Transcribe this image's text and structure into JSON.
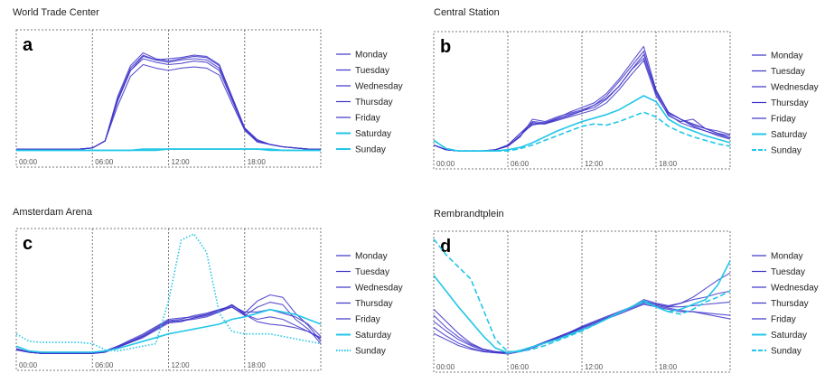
{
  "colors": {
    "weekday": "#3d33c8",
    "weekend": "#22c6e8",
    "frame": "#777777",
    "text": "#222222"
  },
  "chart_data": [
    {
      "type": "line",
      "title": "World Trade Center",
      "panel_letter": "a",
      "x_tick_labels": [
        "00:00",
        "06:00",
        "12:00",
        "18:00"
      ],
      "x_range_hours": [
        0,
        24
      ],
      "x": [
        0,
        1,
        2,
        3,
        4,
        5,
        6,
        7,
        8,
        9,
        10,
        11,
        12,
        13,
        14,
        15,
        16,
        17,
        18,
        19,
        20,
        21,
        22,
        23,
        24
      ],
      "series": [
        {
          "name": "Monday",
          "style": "solid",
          "values": [
            3,
            3,
            3,
            3,
            3,
            3,
            4,
            10,
            45,
            70,
            80,
            77,
            75,
            76,
            78,
            77,
            70,
            45,
            20,
            10,
            7,
            5,
            4,
            3,
            3
          ]
        },
        {
          "name": "Tuesday",
          "style": "solid",
          "values": [
            3,
            3,
            3,
            3,
            3,
            3,
            4,
            10,
            48,
            74,
            85,
            80,
            78,
            80,
            82,
            81,
            74,
            48,
            21,
            11,
            7,
            5,
            4,
            3,
            3
          ]
        },
        {
          "name": "Wednesday",
          "style": "solid",
          "values": [
            3,
            3,
            3,
            3,
            3,
            3,
            4,
            10,
            46,
            72,
            83,
            79,
            80,
            81,
            83,
            82,
            75,
            47,
            21,
            10,
            7,
            5,
            4,
            3,
            3
          ]
        },
        {
          "name": "Thursday",
          "style": "solid",
          "values": [
            3,
            3,
            3,
            3,
            3,
            3,
            4,
            10,
            40,
            65,
            75,
            72,
            70,
            72,
            73,
            72,
            66,
            42,
            19,
            9,
            7,
            5,
            4,
            3,
            3
          ]
        },
        {
          "name": "Friday",
          "style": "solid",
          "values": [
            3,
            3,
            3,
            3,
            3,
            3,
            4,
            10,
            44,
            70,
            82,
            79,
            77,
            79,
            80,
            79,
            72,
            46,
            20,
            10,
            7,
            5,
            4,
            3,
            3
          ]
        },
        {
          "name": "Saturday",
          "style": "solid",
          "values": [
            2,
            2,
            2,
            2,
            2,
            2,
            2,
            2,
            2,
            2,
            3,
            3,
            3,
            3,
            3,
            3,
            3,
            3,
            3,
            3,
            3,
            2,
            2,
            2,
            2
          ]
        },
        {
          "name": "Sunday",
          "style": "solid",
          "values": [
            2,
            2,
            2,
            2,
            2,
            2,
            2,
            2,
            2,
            2,
            2,
            2,
            3,
            3,
            3,
            3,
            3,
            3,
            3,
            3,
            2,
            2,
            2,
            2,
            2
          ]
        }
      ]
    },
    {
      "type": "line",
      "title": "Central Station",
      "panel_letter": "b",
      "x_tick_labels": [
        "00:00",
        "06:00",
        "12:00",
        "18:00"
      ],
      "x_range_hours": [
        0,
        24
      ],
      "x": [
        0,
        1,
        2,
        3,
        4,
        5,
        6,
        7,
        8,
        9,
        10,
        11,
        12,
        13,
        14,
        15,
        16,
        17,
        18,
        19,
        20,
        21,
        22,
        23,
        24
      ],
      "series": [
        {
          "name": "Monday",
          "style": "solid",
          "values": [
            8,
            4,
            3,
            3,
            3,
            4,
            7,
            15,
            30,
            28,
            32,
            35,
            38,
            42,
            48,
            58,
            72,
            85,
            55,
            35,
            30,
            25,
            22,
            18,
            16
          ]
        },
        {
          "name": "Tuesday",
          "style": "solid",
          "values": [
            8,
            4,
            3,
            3,
            3,
            4,
            8,
            18,
            25,
            27,
            30,
            34,
            37,
            42,
            50,
            62,
            75,
            88,
            52,
            33,
            28,
            30,
            22,
            18,
            14
          ]
        },
        {
          "name": "Wednesday",
          "style": "solid",
          "values": [
            8,
            4,
            3,
            3,
            3,
            4,
            8,
            18,
            28,
            27,
            31,
            36,
            40,
            44,
            52,
            64,
            78,
            92,
            55,
            36,
            30,
            24,
            20,
            17,
            14
          ]
        },
        {
          "name": "Thursday",
          "style": "solid",
          "values": [
            8,
            4,
            3,
            3,
            3,
            4,
            7,
            16,
            26,
            26,
            29,
            32,
            35,
            38,
            44,
            55,
            68,
            80,
            50,
            34,
            27,
            23,
            20,
            16,
            13
          ]
        },
        {
          "name": "Friday",
          "style": "solid",
          "values": [
            8,
            4,
            3,
            3,
            3,
            4,
            7,
            16,
            27,
            26,
            30,
            33,
            37,
            40,
            47,
            58,
            72,
            82,
            53,
            36,
            30,
            26,
            22,
            20,
            17
          ]
        },
        {
          "name": "Saturday",
          "style": "solid",
          "values": [
            12,
            5,
            3,
            3,
            3,
            3,
            4,
            6,
            10,
            15,
            20,
            24,
            28,
            31,
            34,
            38,
            44,
            50,
            45,
            30,
            24,
            20,
            16,
            13,
            10
          ]
        },
        {
          "name": "Sunday",
          "style": "dashed",
          "values": [
            12,
            5,
            3,
            3,
            3,
            3,
            3,
            5,
            8,
            12,
            16,
            20,
            24,
            26,
            25,
            28,
            32,
            36,
            32,
            24,
            19,
            15,
            12,
            9,
            7
          ]
        }
      ]
    },
    {
      "type": "line",
      "title": "Amsterdam Arena",
      "panel_letter": "c",
      "x_tick_labels": [
        "00:00",
        "06:00",
        "12:00",
        "18:00"
      ],
      "x_range_hours": [
        0,
        24
      ],
      "x": [
        0,
        1,
        2,
        3,
        4,
        5,
        6,
        7,
        8,
        9,
        10,
        11,
        12,
        13,
        14,
        15,
        16,
        17,
        18,
        19,
        20,
        21,
        22,
        23,
        24
      ],
      "series": [
        {
          "name": "Monday",
          "style": "solid",
          "values": [
            6,
            3,
            2,
            2,
            2,
            2,
            2,
            4,
            8,
            12,
            16,
            22,
            28,
            29,
            30,
            32,
            36,
            42,
            35,
            45,
            50,
            48,
            35,
            25,
            12
          ]
        },
        {
          "name": "Tuesday",
          "style": "solid",
          "values": [
            6,
            3,
            2,
            2,
            2,
            2,
            2,
            4,
            8,
            13,
            18,
            24,
            30,
            31,
            32,
            34,
            38,
            40,
            33,
            40,
            44,
            42,
            30,
            22,
            10
          ]
        },
        {
          "name": "Wednesday",
          "style": "solid",
          "values": [
            5,
            3,
            2,
            2,
            2,
            2,
            2,
            3,
            7,
            12,
            17,
            23,
            29,
            30,
            33,
            35,
            38,
            41,
            36,
            36,
            38,
            35,
            32,
            26,
            16
          ]
        },
        {
          "name": "Thursday",
          "style": "solid",
          "values": [
            5,
            3,
            2,
            2,
            2,
            2,
            2,
            3,
            7,
            11,
            15,
            21,
            27,
            28,
            31,
            34,
            37,
            42,
            34,
            28,
            26,
            25,
            23,
            20,
            15
          ]
        },
        {
          "name": "Friday",
          "style": "solid",
          "values": [
            5,
            3,
            2,
            2,
            2,
            2,
            2,
            3,
            7,
            11,
            16,
            22,
            28,
            29,
            31,
            33,
            36,
            40,
            34,
            30,
            32,
            30,
            25,
            20,
            14
          ]
        },
        {
          "name": "Saturday",
          "style": "solid",
          "values": [
            8,
            4,
            3,
            3,
            3,
            3,
            3,
            4,
            6,
            9,
            12,
            15,
            18,
            20,
            22,
            24,
            26,
            30,
            32,
            35,
            38,
            36,
            34,
            30,
            26
          ]
        },
        {
          "name": "Sunday",
          "style": "dotted",
          "values": [
            18,
            12,
            11,
            11,
            11,
            11,
            10,
            5,
            4,
            6,
            8,
            10,
            45,
            95,
            100,
            85,
            35,
            20,
            18,
            18,
            18,
            16,
            14,
            12,
            10
          ]
        }
      ]
    },
    {
      "type": "line",
      "title": "Rembrandtplein",
      "panel_letter": "d",
      "x_tick_labels": [
        "00:00",
        "06:00",
        "12:00",
        "18:00"
      ],
      "x_range_hours": [
        0,
        24
      ],
      "x": [
        0,
        1,
        2,
        3,
        4,
        5,
        6,
        7,
        8,
        9,
        10,
        11,
        12,
        13,
        14,
        15,
        16,
        17,
        18,
        19,
        20,
        21,
        22,
        23,
        24
      ],
      "series": [
        {
          "name": "Monday",
          "style": "solid",
          "values": [
            25,
            18,
            12,
            8,
            5,
            4,
            3,
            5,
            8,
            12,
            16,
            20,
            25,
            29,
            33,
            37,
            42,
            48,
            45,
            43,
            45,
            48,
            50,
            53,
            55
          ]
        },
        {
          "name": "Tuesday",
          "style": "solid",
          "values": [
            40,
            30,
            20,
            12,
            7,
            5,
            4,
            6,
            9,
            13,
            17,
            21,
            25,
            29,
            33,
            37,
            42,
            47,
            44,
            42,
            45,
            50,
            57,
            64,
            70
          ]
        },
        {
          "name": "Wednesday",
          "style": "solid",
          "values": [
            20,
            15,
            10,
            7,
            5,
            4,
            4,
            6,
            9,
            13,
            17,
            21,
            26,
            30,
            34,
            38,
            42,
            46,
            44,
            42,
            42,
            43,
            44,
            45,
            46
          ]
        },
        {
          "name": "Thursday",
          "style": "solid",
          "values": [
            30,
            22,
            15,
            10,
            6,
            5,
            4,
            6,
            9,
            12,
            16,
            20,
            24,
            28,
            32,
            36,
            40,
            44,
            42,
            40,
            38,
            38,
            37,
            36,
            35
          ]
        },
        {
          "name": "Friday",
          "style": "solid",
          "values": [
            35,
            25,
            17,
            11,
            7,
            5,
            4,
            6,
            9,
            13,
            17,
            21,
            25,
            29,
            33,
            37,
            41,
            45,
            43,
            41,
            39,
            38,
            36,
            34,
            32
          ]
        },
        {
          "name": "Saturday",
          "style": "solid",
          "values": [
            68,
            55,
            42,
            30,
            18,
            8,
            4,
            6,
            9,
            12,
            15,
            19,
            23,
            27,
            32,
            37,
            42,
            47,
            42,
            38,
            40,
            44,
            48,
            60,
            80
          ]
        },
        {
          "name": "Sunday",
          "style": "dashed",
          "values": [
            98,
            85,
            75,
            65,
            40,
            15,
            5,
            5,
            7,
            10,
            14,
            18,
            22,
            27,
            32,
            37,
            42,
            46,
            42,
            38,
            36,
            40,
            46,
            50,
            55
          ]
        }
      ]
    }
  ]
}
